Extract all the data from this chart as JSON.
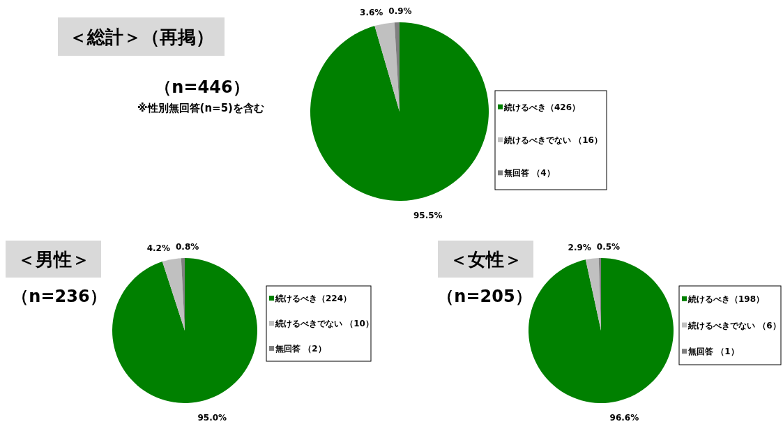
{
  "chart_data": [
    {
      "type": "pie",
      "title": "＜総計＞（再掲）",
      "subtitle": "（n=446）",
      "annotations": [
        "※性別無回答(n=5)を含む"
      ],
      "categories": [
        "続けるべき（426）",
        "続けるべきでない （16）",
        "無回答 （4）"
      ],
      "values": [
        95.5,
        3.6,
        0.9
      ],
      "value_labels": [
        "95.5%",
        "3.6%",
        "0.9%"
      ],
      "colors": [
        "#008000",
        "#c0c0c0",
        "#808080"
      ],
      "legend": "right"
    },
    {
      "type": "pie",
      "title": "＜男性＞",
      "subtitle": "（n=236）",
      "categories": [
        "続けるべき（224）",
        "続けるべきでない （10）",
        "無回答 （2）"
      ],
      "values": [
        95.0,
        4.2,
        0.8
      ],
      "value_labels": [
        "95.0%",
        "4.2%",
        "0.8%"
      ],
      "colors": [
        "#008000",
        "#c0c0c0",
        "#808080"
      ],
      "legend": "right"
    },
    {
      "type": "pie",
      "title": "＜女性＞",
      "subtitle": "（n=205）",
      "categories": [
        "続けるべき（198）",
        "続けるべきでない （6）",
        "無回答 （1）"
      ],
      "values": [
        96.6,
        2.9,
        0.5
      ],
      "value_labels": [
        "96.6%",
        "2.9%",
        "0.5%"
      ],
      "colors": [
        "#008000",
        "#c0c0c0",
        "#808080"
      ],
      "legend": "right"
    }
  ]
}
